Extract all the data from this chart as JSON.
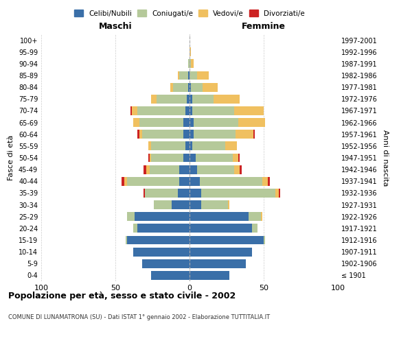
{
  "age_groups": [
    "100+",
    "95-99",
    "90-94",
    "85-89",
    "80-84",
    "75-79",
    "70-74",
    "65-69",
    "60-64",
    "55-59",
    "50-54",
    "45-49",
    "40-44",
    "35-39",
    "30-34",
    "25-29",
    "20-24",
    "15-19",
    "10-14",
    "5-9",
    "0-4"
  ],
  "birth_years": [
    "≤ 1901",
    "1902-1906",
    "1907-1911",
    "1912-1916",
    "1917-1921",
    "1922-1926",
    "1927-1931",
    "1932-1936",
    "1937-1941",
    "1942-1946",
    "1947-1951",
    "1952-1956",
    "1957-1961",
    "1962-1966",
    "1967-1971",
    "1972-1976",
    "1977-1981",
    "1982-1986",
    "1987-1991",
    "1992-1996",
    "1997-2001"
  ],
  "males": {
    "celibi": [
      0,
      0,
      0,
      1,
      1,
      2,
      3,
      4,
      4,
      3,
      4,
      7,
      7,
      8,
      12,
      37,
      35,
      42,
      38,
      32,
      26
    ],
    "coniugati": [
      0,
      0,
      1,
      6,
      10,
      20,
      32,
      30,
      28,
      23,
      22,
      20,
      35,
      22,
      12,
      5,
      3,
      1,
      0,
      0,
      0
    ],
    "vedovi": [
      0,
      0,
      0,
      1,
      2,
      4,
      4,
      4,
      2,
      2,
      1,
      2,
      2,
      0,
      0,
      0,
      0,
      0,
      0,
      0,
      0
    ],
    "divorziati": [
      0,
      0,
      0,
      0,
      0,
      0,
      1,
      0,
      1,
      0,
      1,
      2,
      2,
      1,
      0,
      0,
      0,
      0,
      0,
      0,
      0
    ]
  },
  "females": {
    "nubili": [
      0,
      0,
      0,
      0,
      1,
      2,
      2,
      3,
      3,
      2,
      4,
      5,
      7,
      8,
      8,
      40,
      42,
      50,
      42,
      38,
      27
    ],
    "coniugate": [
      0,
      0,
      1,
      5,
      8,
      14,
      28,
      30,
      28,
      22,
      25,
      25,
      42,
      50,
      18,
      8,
      4,
      1,
      0,
      0,
      0
    ],
    "vedove": [
      0,
      1,
      2,
      8,
      10,
      18,
      20,
      18,
      12,
      8,
      4,
      4,
      4,
      2,
      1,
      1,
      0,
      0,
      0,
      0,
      0
    ],
    "divorziate": [
      0,
      0,
      0,
      0,
      0,
      0,
      0,
      0,
      1,
      0,
      1,
      1,
      1,
      1,
      0,
      0,
      0,
      0,
      0,
      0,
      0
    ]
  },
  "colors": {
    "celibi": "#3a6fa8",
    "coniugati": "#b5c99a",
    "vedovi": "#f0c060",
    "divorziati": "#cc2222"
  },
  "xlim": 100,
  "title": "Popolazione per età, sesso e stato civile - 2002",
  "subtitle": "COMUNE DI LUNAMATRONA (SU) - Dati ISTAT 1° gennaio 2002 - Elaborazione TUTTITALIA.IT",
  "ylabel_left": "Fasce di età",
  "ylabel_right": "Anni di nascita",
  "xlabel_left": "Maschi",
  "xlabel_right": "Femmine",
  "legend_labels": [
    "Celibi/Nubili",
    "Coniugati/e",
    "Vedovi/e",
    "Divorziati/e"
  ],
  "background_color": "#ffffff",
  "grid_color": "#cccccc"
}
